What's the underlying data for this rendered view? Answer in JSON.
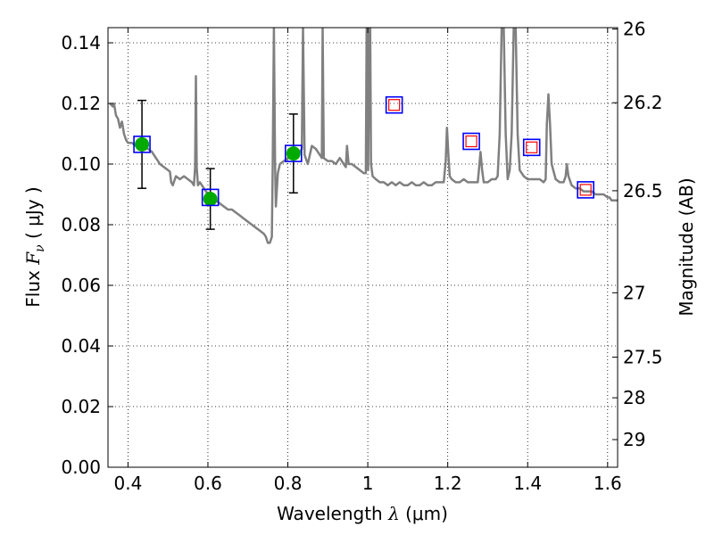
{
  "chart_data": {
    "type": "scatter",
    "xlabel": {
      "prefix": "Wavelength  ",
      "symbol": "λ",
      "suffix": " (μm)"
    },
    "ylabel": {
      "prefix": "Flux  ",
      "symbol": "F",
      "sub": "ν",
      "suffix": "  ( μJy )"
    },
    "y2label": "Magnitude (AB)",
    "xlim": [
      0.35,
      1.625
    ],
    "ylim": [
      0.0,
      0.145
    ],
    "grid": true,
    "x_ticks": [
      {
        "value": 0.4,
        "label": "0.4"
      },
      {
        "value": 0.6,
        "label": "0.6"
      },
      {
        "value": 0.8,
        "label": "0.8"
      },
      {
        "value": 1.0,
        "label": "1"
      },
      {
        "value": 1.2,
        "label": "1.2"
      },
      {
        "value": 1.4,
        "label": "1.4"
      },
      {
        "value": 1.6,
        "label": "1.6"
      }
    ],
    "y_ticks": [
      {
        "value": 0.0,
        "label": "0.00"
      },
      {
        "value": 0.02,
        "label": "0.02"
      },
      {
        "value": 0.04,
        "label": "0.04"
      },
      {
        "value": 0.06,
        "label": "0.06"
      },
      {
        "value": 0.08,
        "label": "0.08"
      },
      {
        "value": 0.1,
        "label": "0.10"
      },
      {
        "value": 0.12,
        "label": "0.12"
      },
      {
        "value": 0.14,
        "label": "0.14"
      }
    ],
    "y2_ticks": [
      {
        "value": 26,
        "label": "26"
      },
      {
        "value": 26.2,
        "label": "26.2"
      },
      {
        "value": 26.5,
        "label": "26.5"
      },
      {
        "value": 27,
        "label": "27"
      },
      {
        "value": 27.5,
        "label": "27.5"
      },
      {
        "value": 28,
        "label": "28"
      },
      {
        "value": 29,
        "label": "29"
      }
    ],
    "model_sed": {
      "color": "#808080",
      "points": [
        [
          0.355,
          0.12
        ],
        [
          0.362,
          0.119
        ],
        [
          0.365,
          0.12
        ],
        [
          0.37,
          0.116
        ],
        [
          0.375,
          0.115
        ],
        [
          0.38,
          0.112
        ],
        [
          0.385,
          0.114
        ],
        [
          0.39,
          0.11
        ],
        [
          0.395,
          0.108
        ],
        [
          0.4,
          0.107
        ],
        [
          0.41,
          0.107
        ],
        [
          0.42,
          0.106
        ],
        [
          0.43,
          0.1055
        ],
        [
          0.44,
          0.106
        ],
        [
          0.45,
          0.105
        ],
        [
          0.46,
          0.104
        ],
        [
          0.47,
          0.102
        ],
        [
          0.475,
          0.101
        ],
        [
          0.48,
          0.1
        ],
        [
          0.49,
          0.099
        ],
        [
          0.5,
          0.098
        ],
        [
          0.505,
          0.0975
        ],
        [
          0.508,
          0.094
        ],
        [
          0.512,
          0.093
        ],
        [
          0.52,
          0.096
        ],
        [
          0.53,
          0.095
        ],
        [
          0.54,
          0.096
        ],
        [
          0.55,
          0.095
        ],
        [
          0.56,
          0.094
        ],
        [
          0.565,
          0.093
        ],
        [
          0.568,
          0.099
        ],
        [
          0.57,
          0.129
        ],
        [
          0.572,
          0.099
        ],
        [
          0.575,
          0.093
        ],
        [
          0.58,
          0.094
        ],
        [
          0.59,
          0.092
        ],
        [
          0.6,
          0.09
        ],
        [
          0.61,
          0.089
        ],
        [
          0.62,
          0.088
        ],
        [
          0.63,
          0.087
        ],
        [
          0.64,
          0.086
        ],
        [
          0.65,
          0.085
        ],
        [
          0.66,
          0.085
        ],
        [
          0.67,
          0.084
        ],
        [
          0.68,
          0.083
        ],
        [
          0.69,
          0.082
        ],
        [
          0.7,
          0.081
        ],
        [
          0.71,
          0.08
        ],
        [
          0.72,
          0.079
        ],
        [
          0.73,
          0.078
        ],
        [
          0.74,
          0.077
        ],
        [
          0.745,
          0.076
        ],
        [
          0.75,
          0.074
        ],
        [
          0.755,
          0.074
        ],
        [
          0.76,
          0.076
        ],
        [
          0.762,
          0.098
        ],
        [
          0.765,
          0.145
        ],
        [
          0.768,
          0.1
        ],
        [
          0.77,
          0.086
        ],
        [
          0.775,
          0.097
        ],
        [
          0.78,
          0.1
        ],
        [
          0.79,
          0.101
        ],
        [
          0.8,
          0.102
        ],
        [
          0.81,
          0.102
        ],
        [
          0.82,
          0.103
        ],
        [
          0.83,
          0.104
        ],
        [
          0.835,
          0.105
        ],
        [
          0.838,
          0.145
        ],
        [
          0.842,
          0.103
        ],
        [
          0.85,
          0.1
        ],
        [
          0.86,
          0.106
        ],
        [
          0.87,
          0.105
        ],
        [
          0.88,
          0.103
        ],
        [
          0.885,
          0.102
        ],
        [
          0.887,
          0.145
        ],
        [
          0.89,
          0.102
        ],
        [
          0.9,
          0.101
        ],
        [
          0.91,
          0.101
        ],
        [
          0.92,
          0.1
        ],
        [
          0.93,
          0.102
        ],
        [
          0.94,
          0.1
        ],
        [
          0.945,
          0.099
        ],
        [
          0.948,
          0.106
        ],
        [
          0.952,
          0.1
        ],
        [
          0.96,
          0.1
        ],
        [
          0.97,
          0.099
        ],
        [
          0.98,
          0.098
        ],
        [
          0.99,
          0.097
        ],
        [
          0.995,
          0.097
        ],
        [
          0.997,
          0.145
        ],
        [
          0.999,
          0.145
        ],
        [
          1.001,
          0.098
        ],
        [
          1.004,
          0.145
        ],
        [
          1.006,
          0.145
        ],
        [
          1.008,
          0.1
        ],
        [
          1.012,
          0.096
        ],
        [
          1.02,
          0.095
        ],
        [
          1.03,
          0.094
        ],
        [
          1.04,
          0.094
        ],
        [
          1.05,
          0.093
        ],
        [
          1.06,
          0.094
        ],
        [
          1.07,
          0.093
        ],
        [
          1.08,
          0.094
        ],
        [
          1.09,
          0.093
        ],
        [
          1.1,
          0.093
        ],
        [
          1.11,
          0.094
        ],
        [
          1.12,
          0.093
        ],
        [
          1.13,
          0.093
        ],
        [
          1.14,
          0.094
        ],
        [
          1.15,
          0.093
        ],
        [
          1.16,
          0.093
        ],
        [
          1.17,
          0.094
        ],
        [
          1.18,
          0.094
        ],
        [
          1.19,
          0.094
        ],
        [
          1.195,
          0.101
        ],
        [
          1.198,
          0.112
        ],
        [
          1.202,
          0.102
        ],
        [
          1.205,
          0.096
        ],
        [
          1.21,
          0.095
        ],
        [
          1.22,
          0.094
        ],
        [
          1.23,
          0.094
        ],
        [
          1.24,
          0.095
        ],
        [
          1.25,
          0.094
        ],
        [
          1.26,
          0.094
        ],
        [
          1.27,
          0.094
        ],
        [
          1.275,
          0.094
        ],
        [
          1.278,
          0.098
        ],
        [
          1.282,
          0.104
        ],
        [
          1.286,
          0.098
        ],
        [
          1.29,
          0.094
        ],
        [
          1.3,
          0.094
        ],
        [
          1.31,
          0.095
        ],
        [
          1.32,
          0.095
        ],
        [
          1.325,
          0.096
        ],
        [
          1.33,
          0.11
        ],
        [
          1.335,
          0.145
        ],
        [
          1.34,
          0.145
        ],
        [
          1.345,
          0.11
        ],
        [
          1.35,
          0.095
        ],
        [
          1.355,
          0.098
        ],
        [
          1.36,
          0.11
        ],
        [
          1.365,
          0.145
        ],
        [
          1.37,
          0.145
        ],
        [
          1.375,
          0.11
        ],
        [
          1.38,
          0.098
        ],
        [
          1.39,
          0.096
        ],
        [
          1.4,
          0.095
        ],
        [
          1.41,
          0.095
        ],
        [
          1.42,
          0.095
        ],
        [
          1.43,
          0.095
        ],
        [
          1.44,
          0.094
        ],
        [
          1.445,
          0.095
        ],
        [
          1.448,
          0.113
        ],
        [
          1.452,
          0.123
        ],
        [
          1.456,
          0.113
        ],
        [
          1.46,
          0.1
        ],
        [
          1.47,
          0.095
        ],
        [
          1.48,
          0.094
        ],
        [
          1.49,
          0.094
        ],
        [
          1.495,
          0.096
        ],
        [
          1.498,
          0.1
        ],
        [
          1.502,
          0.096
        ],
        [
          1.51,
          0.093
        ],
        [
          1.52,
          0.092
        ],
        [
          1.53,
          0.092
        ],
        [
          1.54,
          0.091
        ],
        [
          1.55,
          0.091
        ],
        [
          1.56,
          0.091
        ],
        [
          1.57,
          0.09
        ],
        [
          1.58,
          0.09
        ],
        [
          1.59,
          0.09
        ],
        [
          1.6,
          0.089
        ],
        [
          1.605,
          0.089
        ],
        [
          1.61,
          0.088
        ],
        [
          1.62,
          0.088
        ],
        [
          1.625,
          0.088
        ]
      ]
    },
    "series": [
      {
        "name": "",
        "marker": "circle",
        "color": "#00aa00",
        "points": [
          {
            "x": 0.435,
            "y": 0.1065,
            "yerr": 0.0145
          },
          {
            "x": 0.606,
            "y": 0.0885,
            "yerr": 0.01
          },
          {
            "x": 0.814,
            "y": 0.1035,
            "yerr": 0.013
          }
        ]
      },
      {
        "name": "",
        "marker": "square-open",
        "color": "#0000ff",
        "points": [
          {
            "x": 0.435,
            "y": 0.1065
          },
          {
            "x": 0.606,
            "y": 0.089
          },
          {
            "x": 0.814,
            "y": 0.1035
          },
          {
            "x": 1.066,
            "y": 0.1195
          },
          {
            "x": 1.259,
            "y": 0.1075
          },
          {
            "x": 1.41,
            "y": 0.1055
          },
          {
            "x": 1.545,
            "y": 0.0915
          }
        ]
      },
      {
        "name": "",
        "marker": "square-open",
        "color": "#ff0000",
        "points": [
          {
            "x": 1.066,
            "y": 0.1195
          },
          {
            "x": 1.259,
            "y": 0.1075
          },
          {
            "x": 1.41,
            "y": 0.1055
          },
          {
            "x": 1.545,
            "y": 0.0915
          }
        ]
      }
    ]
  }
}
